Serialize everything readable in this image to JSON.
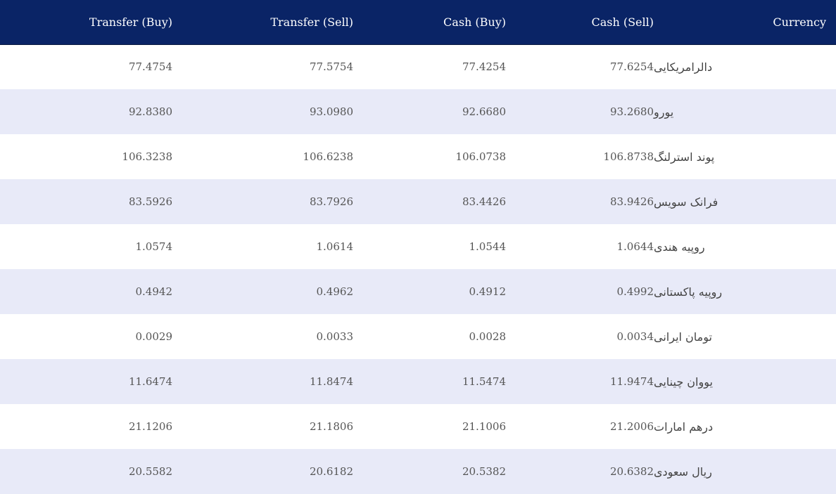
{
  "table": {
    "headers": {
      "transfer_buy": "Transfer (Buy)",
      "transfer_sell": "Transfer (Sell)",
      "cash_buy": "Cash (Buy)",
      "cash_sell": "Cash (Sell)",
      "currency": "Currency"
    },
    "rows": [
      {
        "transfer_buy": "77.4754",
        "transfer_sell": "77.5754",
        "cash_buy": "77.4254",
        "cash_sell": "77.6254",
        "currency": "دالرامریکایی"
      },
      {
        "transfer_buy": "92.8380",
        "transfer_sell": "93.0980",
        "cash_buy": "92.6680",
        "cash_sell": "93.2680",
        "currency": "یورو"
      },
      {
        "transfer_buy": "106.3238",
        "transfer_sell": "106.6238",
        "cash_buy": "106.0738",
        "cash_sell": "106.8738",
        "currency": "پوند استرلنگ"
      },
      {
        "transfer_buy": "83.5926",
        "transfer_sell": "83.7926",
        "cash_buy": "83.4426",
        "cash_sell": "83.9426",
        "currency": "فرانک سویس"
      },
      {
        "transfer_buy": "1.0574",
        "transfer_sell": "1.0614",
        "cash_buy": "1.0544",
        "cash_sell": "1.0644",
        "currency": "روپیه هندی"
      },
      {
        "transfer_buy": "0.4942",
        "transfer_sell": "0.4962",
        "cash_buy": "0.4912",
        "cash_sell": "0.4992",
        "currency": "روپیه پاکستانی"
      },
      {
        "transfer_buy": "0.0029",
        "transfer_sell": "0.0033",
        "cash_buy": "0.0028",
        "cash_sell": "0.0034",
        "currency": "تومان ایرانی"
      },
      {
        "transfer_buy": "11.6474",
        "transfer_sell": "11.8474",
        "cash_buy": "11.5474",
        "cash_sell": "11.9474",
        "currency": "یووان چینایی"
      },
      {
        "transfer_buy": "21.1206",
        "transfer_sell": "21.1806",
        "cash_buy": "21.1006",
        "cash_sell": "21.2006",
        "currency": "درهم امارات"
      },
      {
        "transfer_buy": "20.5582",
        "transfer_sell": "20.6182",
        "cash_buy": "20.5382",
        "cash_sell": "20.6382",
        "currency": "ریال سعودی"
      }
    ]
  },
  "colors": {
    "header_background": "#0a2466",
    "header_text": "#ffffff",
    "row_alt_background": "#e8eaf8",
    "row_background": "#ffffff",
    "cell_text": "#555555"
  }
}
